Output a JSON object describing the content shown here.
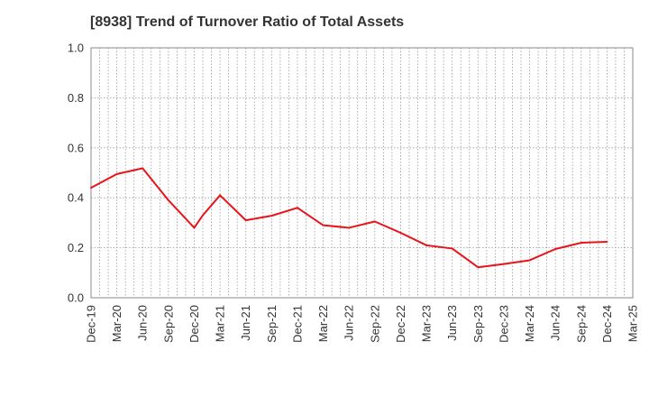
{
  "chart_data": {
    "type": "line",
    "title": "[8938]  Trend of Turnover Ratio of Total Assets",
    "xlabel": "",
    "ylabel": "",
    "ylim": [
      0.0,
      1.0
    ],
    "yticks": [
      "0.0",
      "0.2",
      "0.4",
      "0.6",
      "0.8",
      "1.0"
    ],
    "xticks": [
      "Dec-19",
      "Mar-20",
      "Jun-20",
      "Sep-20",
      "Dec-20",
      "Mar-21",
      "Jun-21",
      "Sep-21",
      "Dec-21",
      "Mar-22",
      "Jun-22",
      "Sep-22",
      "Dec-22",
      "Mar-23",
      "Jun-23",
      "Sep-23",
      "Dec-23",
      "Mar-24",
      "Jun-24",
      "Sep-24",
      "Dec-24",
      "Mar-25"
    ],
    "grid": true,
    "series": [
      {
        "color": "#e8141b",
        "x": [
          "Dec-19",
          "Mar-20",
          "Jun-20",
          "Sep-20",
          "Dec-20",
          "Jan-21",
          "Mar-21",
          "Jun-21",
          "Sep-21",
          "Dec-21",
          "Mar-22",
          "Jun-22",
          "Sep-22",
          "Dec-22",
          "Mar-23",
          "Jun-23",
          "Sep-23",
          "Dec-23",
          "Mar-24",
          "Jun-24",
          "Sep-24",
          "Dec-24"
        ],
        "values": [
          0.44,
          0.495,
          0.518,
          0.39,
          0.28,
          0.33,
          0.41,
          0.31,
          0.328,
          0.36,
          0.29,
          0.28,
          0.305,
          0.26,
          0.21,
          0.197,
          0.122,
          0.135,
          0.15,
          0.195,
          0.22,
          0.224
        ]
      }
    ]
  }
}
